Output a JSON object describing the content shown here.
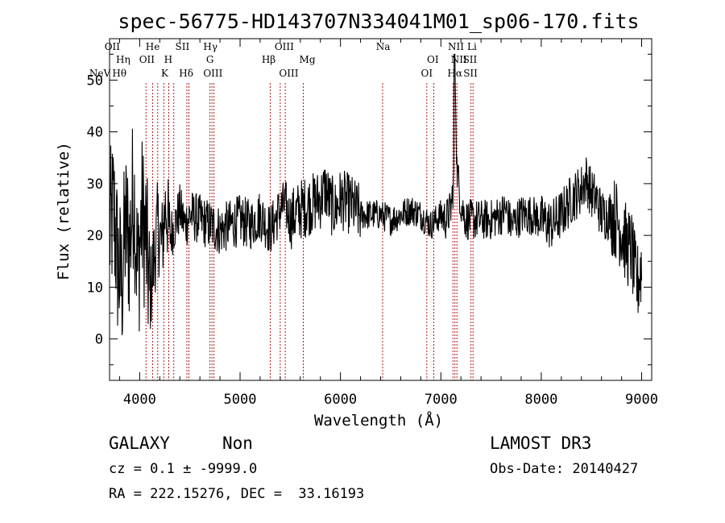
{
  "chart_data": {
    "type": "line",
    "title": "spec-56775-HD143707N334041M01_sp06-170.fits",
    "xlabel": "Wavelength (Å)",
    "ylabel": "Flux (relative)",
    "xlim": [
      3700,
      9100
    ],
    "ylim": [
      -8,
      58
    ],
    "xticks": [
      4000,
      5000,
      6000,
      7000,
      8000,
      9000
    ],
    "yticks": [
      0,
      10,
      20,
      30,
      40,
      50
    ],
    "line_color": "#000000",
    "marker_color": "#aa0000",
    "grid": false,
    "series": [
      {
        "x": [
          3700,
          3740,
          3780,
          3820,
          3860,
          3900,
          3940,
          3980,
          4020,
          4060,
          4100,
          4140,
          4180,
          4220,
          4260,
          4300,
          4350,
          4400,
          4450,
          4500,
          4600,
          4700,
          4800,
          4900,
          5000,
          5100,
          5200,
          5300,
          5400,
          5450,
          5500,
          5600,
          5700,
          5800,
          5850,
          5900,
          5950,
          6000,
          6100,
          6200,
          6300,
          6400,
          6500,
          6600,
          6700,
          6800,
          6900,
          7000,
          7050,
          7100,
          7130,
          7140,
          7160,
          7200,
          7250,
          7300,
          7400,
          7500,
          7600,
          7650,
          7700,
          7800,
          7900,
          8000,
          8100,
          8200,
          8300,
          8400,
          8450,
          8500,
          8550,
          8600,
          8700,
          8750,
          8800,
          8850,
          8900,
          8950,
          9000
        ],
        "y": [
          20,
          25,
          15,
          10,
          22,
          18,
          30,
          12,
          24,
          20,
          8,
          15,
          22,
          18,
          26,
          20,
          22,
          25,
          22,
          24,
          23,
          22,
          21,
          22,
          23,
          22,
          24,
          21,
          25,
          26,
          23,
          25,
          26,
          27,
          29,
          26,
          25,
          27,
          26,
          24,
          24,
          24,
          23,
          24,
          25,
          24,
          22,
          24,
          23,
          25,
          31,
          55,
          33,
          26,
          23,
          23,
          23,
          23,
          24,
          25,
          22,
          24,
          24,
          23,
          22,
          24,
          27,
          29,
          31,
          28,
          27,
          24,
          24,
          23,
          21,
          18,
          17,
          10,
          14
        ]
      }
    ],
    "line_markers": [
      {
        "label": "NeV",
        "wavelength": 3426,
        "row": 3
      },
      {
        "label": "OII",
        "wavelength": 3727,
        "row": 1
      },
      {
        "label": "OII",
        "wavelength": 4072,
        "row": 2
      },
      {
        "label": "Hθ",
        "wavelength": 3798,
        "row": 3
      },
      {
        "label": "He",
        "wavelength": 4130,
        "row": 1
      },
      {
        "label": "Hη",
        "wavelength": 3835,
        "row": 2
      },
      {
        "label": "K",
        "wavelength": 4250,
        "row": 3
      },
      {
        "label": "H",
        "wavelength": 4285,
        "row": 2
      },
      {
        "label": "SII",
        "wavelength": 4425,
        "row": 1
      },
      {
        "label": "Hδ",
        "wavelength": 4463,
        "row": 3
      },
      {
        "label": "Hγ",
        "wavelength": 4705,
        "row": 1
      },
      {
        "label": "G",
        "wavelength": 4700,
        "row": 2
      },
      {
        "label": "OIII",
        "wavelength": 4730,
        "row": 3
      },
      {
        "label": "OIII",
        "wavelength": 5440,
        "row": 1
      },
      {
        "label": "Hβ",
        "wavelength": 5285,
        "row": 2
      },
      {
        "label": "OIII",
        "wavelength": 5485,
        "row": 3
      },
      {
        "label": "Mg",
        "wavelength": 5670,
        "row": 2
      },
      {
        "label": "Na",
        "wavelength": 6425,
        "row": 1
      },
      {
        "label": "OI",
        "wavelength": 6920,
        "row": 2
      },
      {
        "label": "OI",
        "wavelength": 6860,
        "row": 3
      },
      {
        "label": "NII",
        "wavelength": 7150,
        "row": 1
      },
      {
        "label": "NII",
        "wavelength": 7180,
        "row": 2
      },
      {
        "label": "Hα",
        "wavelength": 7140,
        "row": 3
      },
      {
        "label": "Li",
        "wavelength": 7310,
        "row": 1
      },
      {
        "label": "SII",
        "wavelength": 7290,
        "row": 2
      },
      {
        "label": "SII",
        "wavelength": 7295,
        "row": 3
      }
    ],
    "marker_lines": [
      4063,
      4130,
      4180,
      4240,
      4290,
      4340,
      4470,
      4490,
      4700,
      4720,
      4740,
      5300,
      5400,
      5450,
      5630,
      6420,
      6860,
      6930,
      7120,
      7140,
      7160,
      7300,
      7320
    ]
  },
  "info": {
    "class": "GALAXY",
    "subclass": "Non",
    "cz": "cz = 0.1 ± -9999.0",
    "radec": "RA = 222.15276, DEC =  33.16193",
    "survey": "LAMOST DR3",
    "obsdate": "Obs-Date: 20140427"
  }
}
